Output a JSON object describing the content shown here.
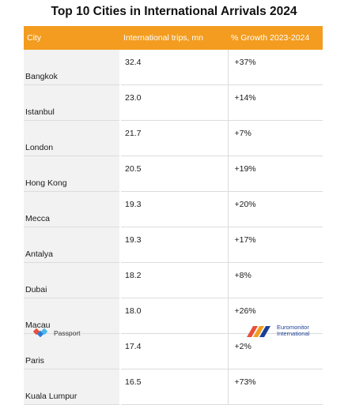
{
  "title": "Top 10 Cities in International Arrivals 2024",
  "chart_data": {
    "type": "table",
    "columns": [
      "City",
      "International trips, mn",
      "% Growth 2023-2024"
    ],
    "rows": [
      {
        "city": "Bangkok",
        "trips": "32.4",
        "growth": "+37%"
      },
      {
        "city": "Istanbul",
        "trips": "23.0",
        "growth": "+14%"
      },
      {
        "city": "London",
        "trips": "21.7",
        "growth": "+7%"
      },
      {
        "city": "Hong Kong",
        "trips": "20.5",
        "growth": "+19%"
      },
      {
        "city": "Mecca",
        "trips": "19.3",
        "growth": "+20%"
      },
      {
        "city": "Antalya",
        "trips": "19.3",
        "growth": "+17%"
      },
      {
        "city": "Dubai",
        "trips": "18.2",
        "growth": "+8%"
      },
      {
        "city": "Macau",
        "trips": "18.0",
        "growth": "+26%"
      },
      {
        "city": "Paris",
        "trips": "17.4",
        "growth": "+2%"
      },
      {
        "city": "Kuala Lumpur",
        "trips": "16.5",
        "growth": "+73%"
      }
    ],
    "header_color": "#f39c1f"
  },
  "footer": {
    "left_brand": "Passport",
    "right_brand_line1": "Euromonitor",
    "right_brand_line2": "International"
  }
}
